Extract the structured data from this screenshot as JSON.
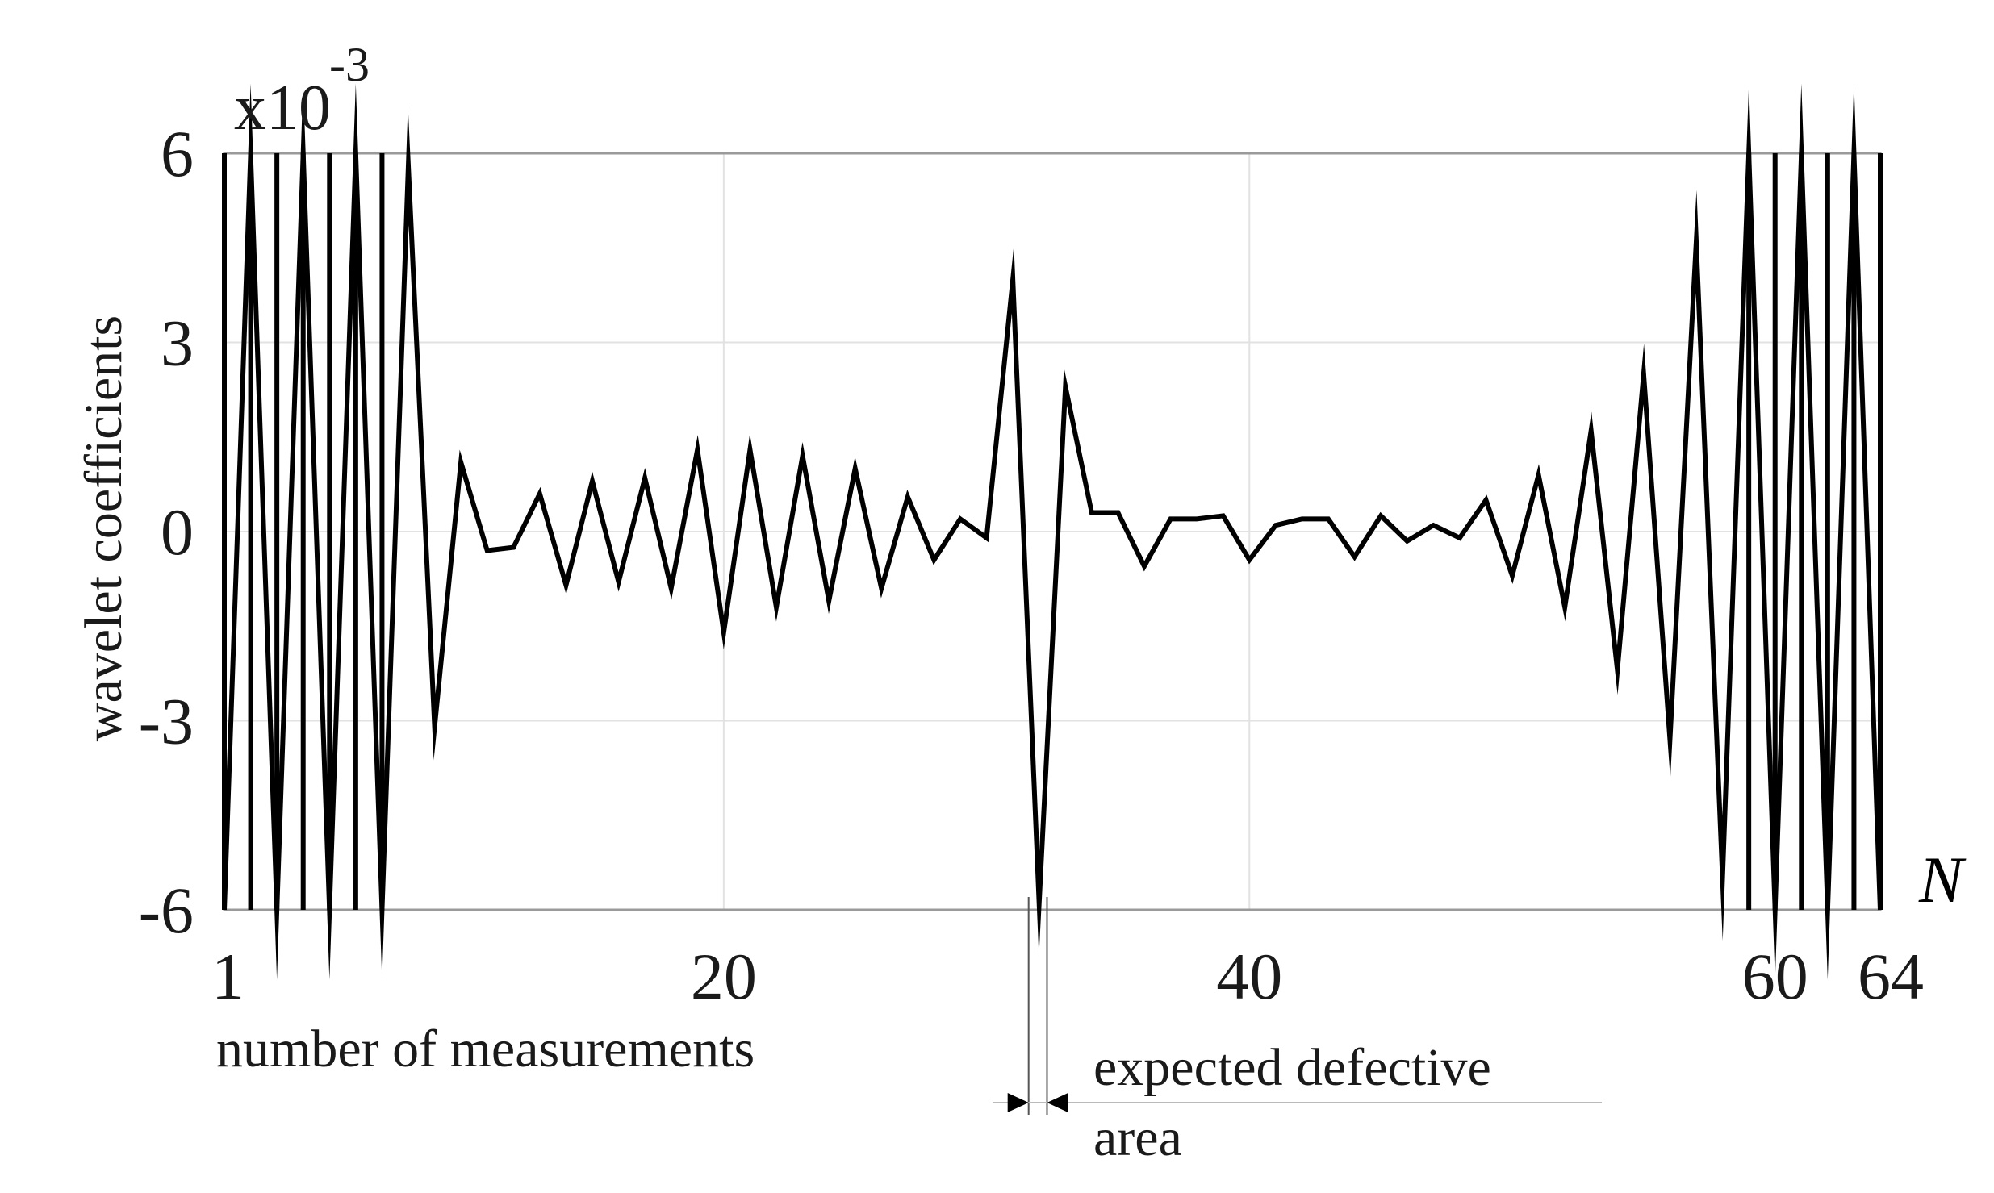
{
  "chart_data": {
    "type": "line",
    "title": "",
    "xlabel": "number of measurements",
    "ylabel": "wavelet coefficients",
    "x_axis_symbol": "N",
    "y_scale_base": "x10",
    "y_scale_exponent": "-3",
    "xlim": [
      1,
      64
    ],
    "ylim": [
      -6,
      6
    ],
    "x_ticks": [
      "1",
      "20",
      "40",
      "60",
      "64"
    ],
    "y_ticks": [
      "6",
      "3",
      "0",
      "-3",
      "-6"
    ],
    "grid": true,
    "legend": "none",
    "series": [
      {
        "x": [
          1,
          2,
          3,
          4,
          5,
          6,
          7,
          8,
          9,
          10,
          11,
          12,
          13,
          14,
          15,
          16,
          17,
          18,
          19,
          20,
          21,
          22,
          23,
          24,
          25,
          26,
          27,
          28,
          29,
          30,
          31,
          32,
          33,
          34,
          35,
          36,
          37,
          38,
          39,
          40,
          41,
          42,
          43,
          44,
          45,
          46,
          47,
          48,
          49,
          50,
          51,
          52,
          53,
          54,
          55,
          56,
          57,
          58,
          59,
          60,
          61,
          62,
          63,
          64
        ],
        "values": [
          -6,
          6,
          -6,
          6,
          -6,
          6,
          -6,
          5.8,
          -3.1,
          1.1,
          -0.3,
          -0.25,
          0.6,
          -0.85,
          0.8,
          -0.8,
          0.85,
          -0.9,
          1.3,
          -1.6,
          1.3,
          -1.2,
          1.2,
          -1.1,
          1.0,
          -0.9,
          0.55,
          -0.45,
          0.2,
          -0.1,
          4.0,
          -5.9,
          2.3,
          0.3,
          0.3,
          -0.55,
          0.2,
          0.2,
          0.25,
          -0.45,
          0.1,
          0.2,
          0.2,
          -0.4,
          0.25,
          -0.15,
          0.1,
          -0.1,
          0.5,
          -0.7,
          0.9,
          -1.2,
          1.6,
          -2.2,
          2.5,
          -3.3,
          4.6,
          -5.5,
          6,
          -6,
          6,
          -6,
          6,
          -6
        ]
      }
    ],
    "annotation": {
      "line1": "expected defective",
      "line2": "area",
      "range_x": [
        31.6,
        32.3
      ]
    }
  }
}
